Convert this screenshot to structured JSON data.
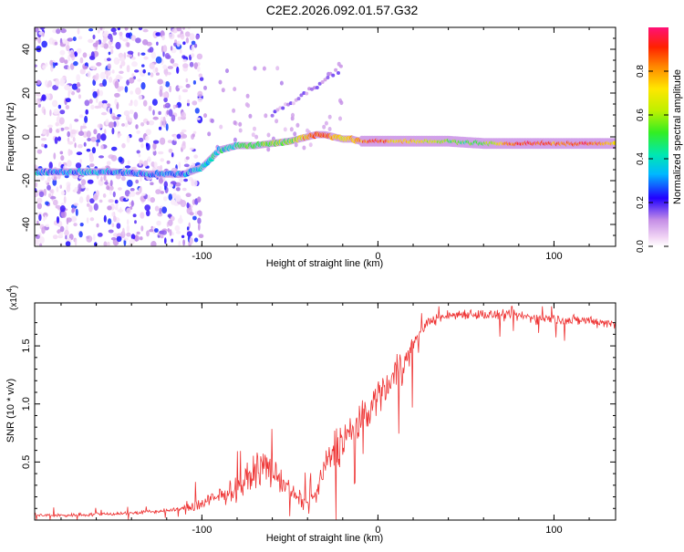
{
  "title": "C2E2.2026.092.01.57.G32",
  "chart_data": [
    {
      "type": "heatmap",
      "name": "spectrogram",
      "xlabel": "Height of straight line (km)",
      "ylabel": "Frequency (Hz)",
      "xlim": [
        -195,
        135
      ],
      "ylim": [
        -50,
        50
      ],
      "x_ticks": [
        -100,
        0,
        100
      ],
      "y_ticks": [
        -40,
        -20,
        0,
        20,
        40
      ],
      "colorbar": {
        "label": "Normalized spectral amplitude",
        "range": [
          0,
          1
        ],
        "ticks": [
          0.0,
          0.2,
          0.4,
          0.6,
          0.8
        ]
      },
      "ridge": {
        "x": [
          -195,
          -170,
          -150,
          -130,
          -110,
          -100,
          -90,
          -80,
          -70,
          -60,
          -50,
          -40,
          -35,
          -30,
          -25,
          -20,
          -15,
          -10,
          -5,
          0,
          10,
          20,
          40,
          60,
          80,
          100,
          120,
          135
        ],
        "freq": [
          -16,
          -16,
          -16,
          -17,
          -17,
          -14,
          -6,
          -4,
          -4,
          -3,
          -2,
          0,
          1,
          1,
          0,
          -1,
          -1,
          -2,
          -2,
          -2,
          -2,
          -2,
          -2,
          -3,
          -3,
          -3,
          -3,
          -3
        ],
        "amplitude": [
          0.3,
          0.32,
          0.3,
          0.28,
          0.3,
          0.35,
          0.4,
          0.45,
          0.5,
          0.55,
          0.55,
          0.75,
          0.9,
          0.9,
          0.75,
          0.7,
          0.75,
          0.8,
          0.85,
          0.9,
          0.75,
          0.75,
          0.55,
          0.5,
          0.9,
          0.85,
          0.9,
          0.7
        ]
      }
    },
    {
      "type": "line",
      "name": "snr",
      "xlabel": "Height of straight line (km)",
      "ylabel": "SNR (10 * v/v)",
      "scale_label": "(x10",
      "scale_exp": "4",
      "scale_close": ")",
      "xlim": [
        -195,
        135
      ],
      "ylim": [
        0,
        1.87
      ],
      "x_ticks": [
        -100,
        0,
        100
      ],
      "y_ticks": [
        0.5,
        1.0,
        1.5
      ],
      "y_tick_labels": [
        "0.5",
        "1.0",
        "1.5"
      ],
      "color": "#ee3333",
      "series": [
        {
          "name": "SNR",
          "x": [
            -195,
            -180,
            -160,
            -140,
            -120,
            -110,
            -100,
            -95,
            -90,
            -85,
            -80,
            -75,
            -70,
            -65,
            -60,
            -55,
            -50,
            -45,
            -40,
            -35,
            -30,
            -25,
            -20,
            -15,
            -10,
            -5,
            0,
            5,
            10,
            15,
            20,
            25,
            30,
            40,
            50,
            60,
            70,
            80,
            90,
            100,
            110,
            120,
            130,
            135
          ],
          "y": [
            0.04,
            0.04,
            0.05,
            0.06,
            0.08,
            0.1,
            0.14,
            0.17,
            0.2,
            0.24,
            0.28,
            0.33,
            0.42,
            0.48,
            0.4,
            0.35,
            0.25,
            0.18,
            0.14,
            0.22,
            0.45,
            0.6,
            0.7,
            0.75,
            0.85,
            0.95,
            1.08,
            1.15,
            1.3,
            1.35,
            1.5,
            1.65,
            1.72,
            1.76,
            1.78,
            1.77,
            1.76,
            1.76,
            1.74,
            1.73,
            1.72,
            1.72,
            1.7,
            1.68
          ]
        }
      ]
    }
  ]
}
